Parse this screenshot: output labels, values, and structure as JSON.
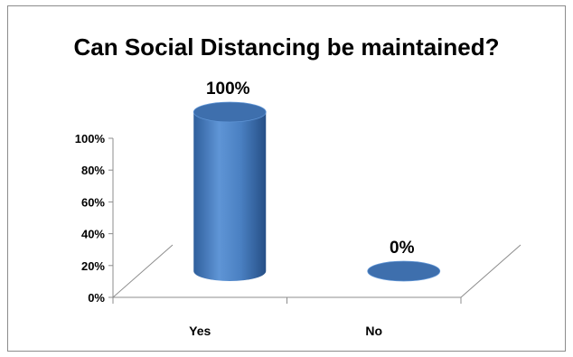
{
  "chart_data": {
    "type": "bar",
    "title": "Can Social Distancing be maintained?",
    "categories": [
      "Yes",
      "No"
    ],
    "values": [
      100,
      0
    ],
    "data_labels": [
      "100%",
      "0%"
    ],
    "y_ticks": [
      "0%",
      "20%",
      "40%",
      "60%",
      "80%",
      "100%"
    ],
    "ylim": [
      0,
      100
    ],
    "xlabel": "",
    "ylabel": "",
    "style": "3d-cylinder",
    "grid": false,
    "legend": "none",
    "bar_color": "#4a7ebb"
  }
}
